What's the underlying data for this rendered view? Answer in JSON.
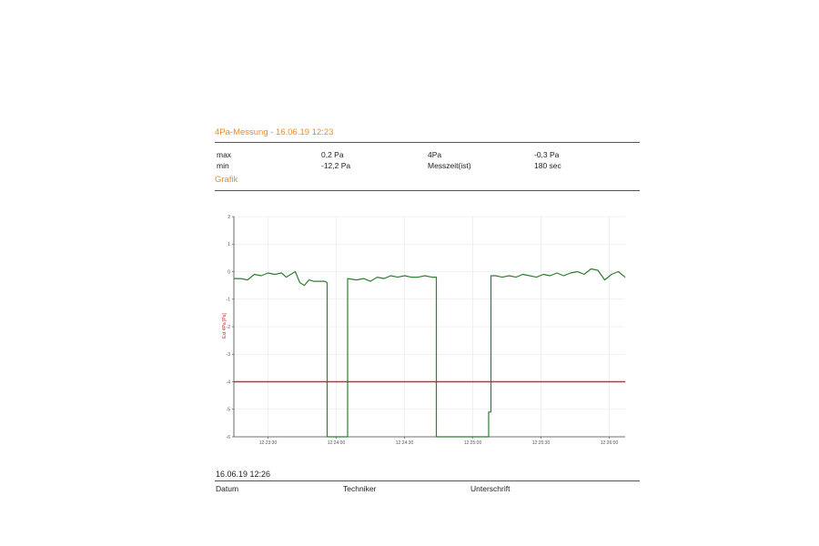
{
  "report": {
    "title": "4Pa-Messung - 16.06.19 12:23",
    "measurements": {
      "row1": {
        "label1": "max",
        "value1": "0,2 Pa",
        "label2": "4Pa",
        "value2": "-0,3 Pa"
      },
      "row2": {
        "label1": "min",
        "value1": "-12,2 Pa",
        "label2": "Messzeit(ist)",
        "value2": "180 sec"
      }
    },
    "grafik_title": "Grafik"
  },
  "chart_data": {
    "type": "line",
    "ylabel": "Ext 4Pa [Pa]",
    "xlabel": "",
    "ylim": [
      -6,
      2
    ],
    "yticks": [
      "2",
      "1",
      "0",
      "-1",
      "-2",
      "-3",
      "-4",
      "-5",
      "-6"
    ],
    "xticks": [
      "12:23:30",
      "12:24:00",
      "12:24:30",
      "12:25:00",
      "12:25:30",
      "12:26:00"
    ],
    "grid": true,
    "threshold": {
      "value": -4,
      "color": "#d42a2a"
    },
    "series": [
      {
        "color": "#2e7d32",
        "x": [
          "12:23:15",
          "12:23:18",
          "12:23:21",
          "12:23:24",
          "12:23:27",
          "12:23:30",
          "12:23:33",
          "12:23:36",
          "12:23:38",
          "12:23:40",
          "12:23:42",
          "12:23:44",
          "12:23:46",
          "12:23:48",
          "12:23:50",
          "12:23:52",
          "12:23:55",
          "12:23:56",
          "12:23:56",
          "12:24:05",
          "12:24:05",
          "12:24:09",
          "12:24:12",
          "12:24:15",
          "12:24:18",
          "12:24:21",
          "12:24:24",
          "12:24:27",
          "12:24:30",
          "12:24:33",
          "12:24:36",
          "12:24:39",
          "12:24:42",
          "12:24:44",
          "12:24:44",
          "12:25:00",
          "12:25:07",
          "12:25:07",
          "12:25:08",
          "12:25:08",
          "12:25:10",
          "12:25:13",
          "12:25:16",
          "12:25:19",
          "12:25:22",
          "12:25:25",
          "12:25:28",
          "12:25:31",
          "12:25:34",
          "12:25:37",
          "12:25:40",
          "12:25:43",
          "12:25:46",
          "12:25:49",
          "12:25:52",
          "12:25:55",
          "12:25:58",
          "12:26:01",
          "12:26:04",
          "12:26:07"
        ],
        "y": [
          -0.25,
          -0.25,
          -0.3,
          -0.1,
          -0.15,
          -0.05,
          -0.1,
          -0.05,
          -0.2,
          -0.1,
          0.0,
          -0.4,
          -0.5,
          -0.3,
          -0.35,
          -0.35,
          -0.35,
          -0.4,
          -6.0,
          -6.0,
          -0.25,
          -0.3,
          -0.25,
          -0.35,
          -0.2,
          -0.25,
          -0.15,
          -0.2,
          -0.15,
          -0.2,
          -0.2,
          -0.15,
          -0.2,
          -0.2,
          -6.0,
          -6.0,
          -6.0,
          -5.1,
          -5.1,
          -0.15,
          -0.15,
          -0.2,
          -0.15,
          -0.2,
          -0.1,
          -0.15,
          -0.2,
          -0.1,
          -0.15,
          -0.05,
          -0.15,
          -0.05,
          0.0,
          -0.1,
          0.1,
          0.05,
          -0.3,
          -0.1,
          0.0,
          -0.2
        ]
      }
    ]
  },
  "footer": {
    "date_value": "16.06.19 12:26",
    "labels": {
      "datum": "Datum",
      "techniker": "Techniker",
      "unterschrift": "Unterschrift"
    }
  }
}
